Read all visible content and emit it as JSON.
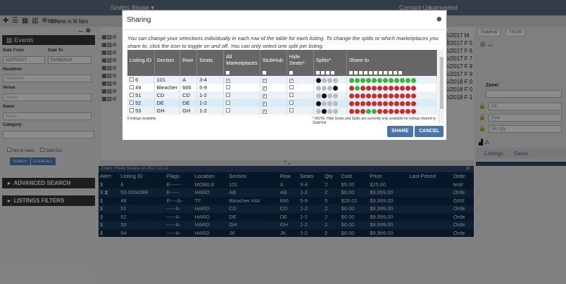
{
  "app": {
    "brand": "Smiths Blogie ▾",
    "contact": "Contact Us",
    "user": "kainyelest"
  },
  "subbar": {
    "fam": "Nitrane is lit fam"
  },
  "left": {
    "events_title": "Events",
    "date_from_label": "Date From",
    "date_to_label": "Date To",
    "date_from": "12/07/2017",
    "date_to": "01/06/2018",
    "headliner_label": "Headliner",
    "headliner_ph": "Headliner",
    "venue_label": "Venue",
    "venue_ph": "Venue",
    "name_label": "Name",
    "name_ph": "Name",
    "category_label": "Category:",
    "not_in_hand": "Not in-hand",
    "sold_out": "Sold Out",
    "search_btn": "SEARCH",
    "clear_btn": "CLEAR ALL",
    "advanced_search": "ADVANCED SEARCH",
    "listings_filters": "LISTINGS FILTERS"
  },
  "right": {
    "tab1": "StubHub",
    "tab2": "TNOW",
    "zone_label": "Zone:",
    "f1": "DE",
    "f2": "Row",
    "f3": "Min Qty",
    "listings_tab": "Listings",
    "sales_tab": "Sales"
  },
  "right_dates": [
    "5/2017 M 0",
    "5/2017 F 5",
    "5/2017 F 6",
    "5/2017 F 7",
    "5/2017 F 9",
    "5/2017 F 9",
    "5/2018 F 0",
    "5/2018 F 0",
    "5/2018 F 1"
  ],
  "event_bar": "Event: Frank Sinatra on 2017-12-11",
  "grid": {
    "headers": [
      "Alert",
      "Listing ID",
      "Flags",
      "Location",
      "Section",
      "Row",
      "Seats",
      "Qty",
      "Cost",
      "Price",
      "Last Priced",
      "Orde"
    ],
    "rows": [
      [
        "$",
        "6",
        "E------",
        "MOBILE",
        "101",
        "A",
        "3-4",
        "2",
        "$5.00",
        "$25.00",
        "",
        "test/"
      ],
      [
        "$ ⧗",
        "50-DD438R",
        "E-----",
        "HARD",
        "AB",
        "AB",
        "1-2",
        "2",
        "$0.00",
        "$9,999.00",
        "",
        "Orde"
      ],
      [
        "$",
        "49",
        "E----A-",
        "TF",
        "Bleacher 444",
        "666",
        "5-9",
        "5",
        "$28.02",
        "$9,999.00",
        "",
        "GRE"
      ],
      [
        "$",
        "51",
        "-----A-",
        "HARD",
        "CD",
        "CD",
        "1-2",
        "2",
        "$0.00",
        "$9,999.00",
        "",
        "Orde"
      ],
      [
        "$",
        "52",
        "-----A-",
        "HARD",
        "DE",
        "DE",
        "1-2",
        "2",
        "$0.00",
        "$9,999.00",
        "",
        "Orde"
      ],
      [
        "$",
        "53",
        "-----A-",
        "HARD",
        "GH",
        "GH",
        "1-2",
        "2",
        "$0.00",
        "$9,999.00",
        "",
        "Orde"
      ],
      [
        "$",
        "54",
        "-----A-",
        "HARD",
        "JK",
        "JK",
        "1-2",
        "2",
        "$0.00",
        "$9,999.00",
        "",
        "Orde"
      ]
    ]
  },
  "modal": {
    "title": "Sharing",
    "desc": "You can change your selections individually in each row of the table for each listing. To change the splits or which marketplaces you share to, click the icon to toggle on and off. You can only select one split per listing.",
    "headers": [
      "Listing ID",
      "Section",
      "Row",
      "Seats",
      "All Marketplaces",
      "StubHub",
      "Hide Seats*",
      "Splits*",
      "Share to"
    ],
    "rows": [
      {
        "id": "6",
        "section": "101",
        "row": "A",
        "seats": "3-4",
        "all": true,
        "stub": true,
        "hide": true,
        "split_sel": 0,
        "share": "green"
      },
      {
        "id": "49",
        "section": "Bleacher",
        "row": "666",
        "seats": "5-9",
        "all": false,
        "stub": true,
        "hide": false,
        "split_sel": 3,
        "share": "red"
      },
      {
        "id": "51",
        "section": "CD",
        "row": "CD",
        "seats": "1-2",
        "all": false,
        "stub": true,
        "hide": false,
        "split_sel": 1,
        "share": "red"
      },
      {
        "id": "52",
        "section": "DE",
        "row": "DE",
        "seats": "1-2",
        "all": false,
        "stub": true,
        "hide": false,
        "split_sel": 0,
        "share": "red"
      },
      {
        "id": "53",
        "section": "GH",
        "row": "GH",
        "seats": "1-2",
        "all": false,
        "stub": true,
        "hide": false,
        "split_sel": 1,
        "share": "mixed"
      }
    ],
    "count": "6 listings available",
    "note": "* NOTE: Hide Seats and Splits are currently only available for listings shared to StubHub",
    "share_btn": "SHARE",
    "cancel_btn": "CANCEL"
  },
  "colors": {
    "share_green": "#3cb43c",
    "share_red": "#cc2b2b",
    "header_dark": "#666666",
    "button_blue": "#4a74a8"
  }
}
